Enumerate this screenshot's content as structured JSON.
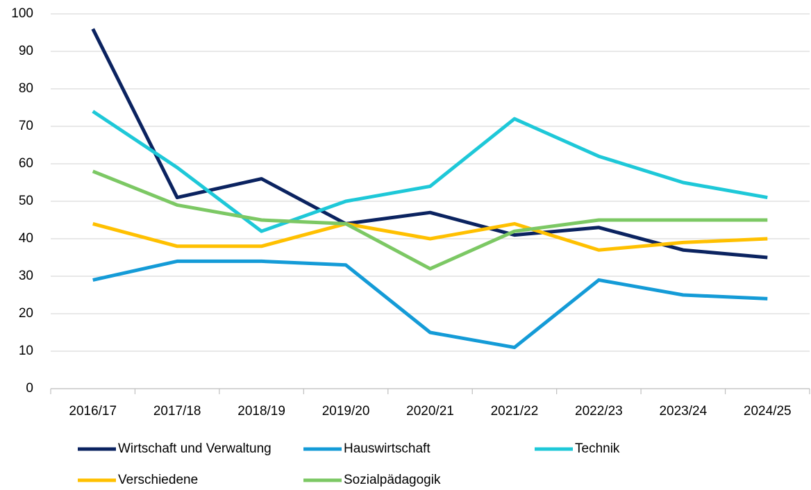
{
  "chart_data": {
    "type": "line",
    "categories": [
      "2016/17",
      "2017/18",
      "2018/19",
      "2019/20",
      "2020/21",
      "2021/22",
      "2022/23",
      "2023/24",
      "2024/25"
    ],
    "series": [
      {
        "name": "Wirtschaft und Verwaltung",
        "color": "#0b2360",
        "values": [
          96,
          51,
          56,
          44,
          47,
          41,
          43,
          37,
          35
        ]
      },
      {
        "name": "Hauswirtschaft",
        "color": "#149bd7",
        "values": [
          29,
          34,
          34,
          33,
          15,
          11,
          29,
          25,
          24
        ]
      },
      {
        "name": "Technik",
        "color": "#1ec8d8",
        "values": [
          74,
          59,
          42,
          50,
          54,
          72,
          62,
          55,
          51
        ]
      },
      {
        "name": "Verschiedene",
        "color": "#ffc000",
        "values": [
          44,
          38,
          38,
          44,
          40,
          44,
          37,
          39,
          40
        ]
      },
      {
        "name": "Sozialpädagogik",
        "color": "#7cc864",
        "values": [
          58,
          49,
          45,
          44,
          32,
          42,
          45,
          45,
          45
        ]
      }
    ],
    "ylim": [
      0,
      100
    ],
    "yticks": [
      0,
      10,
      20,
      30,
      40,
      50,
      60,
      70,
      80,
      90,
      100
    ],
    "grid": true,
    "legend": "bottom"
  }
}
